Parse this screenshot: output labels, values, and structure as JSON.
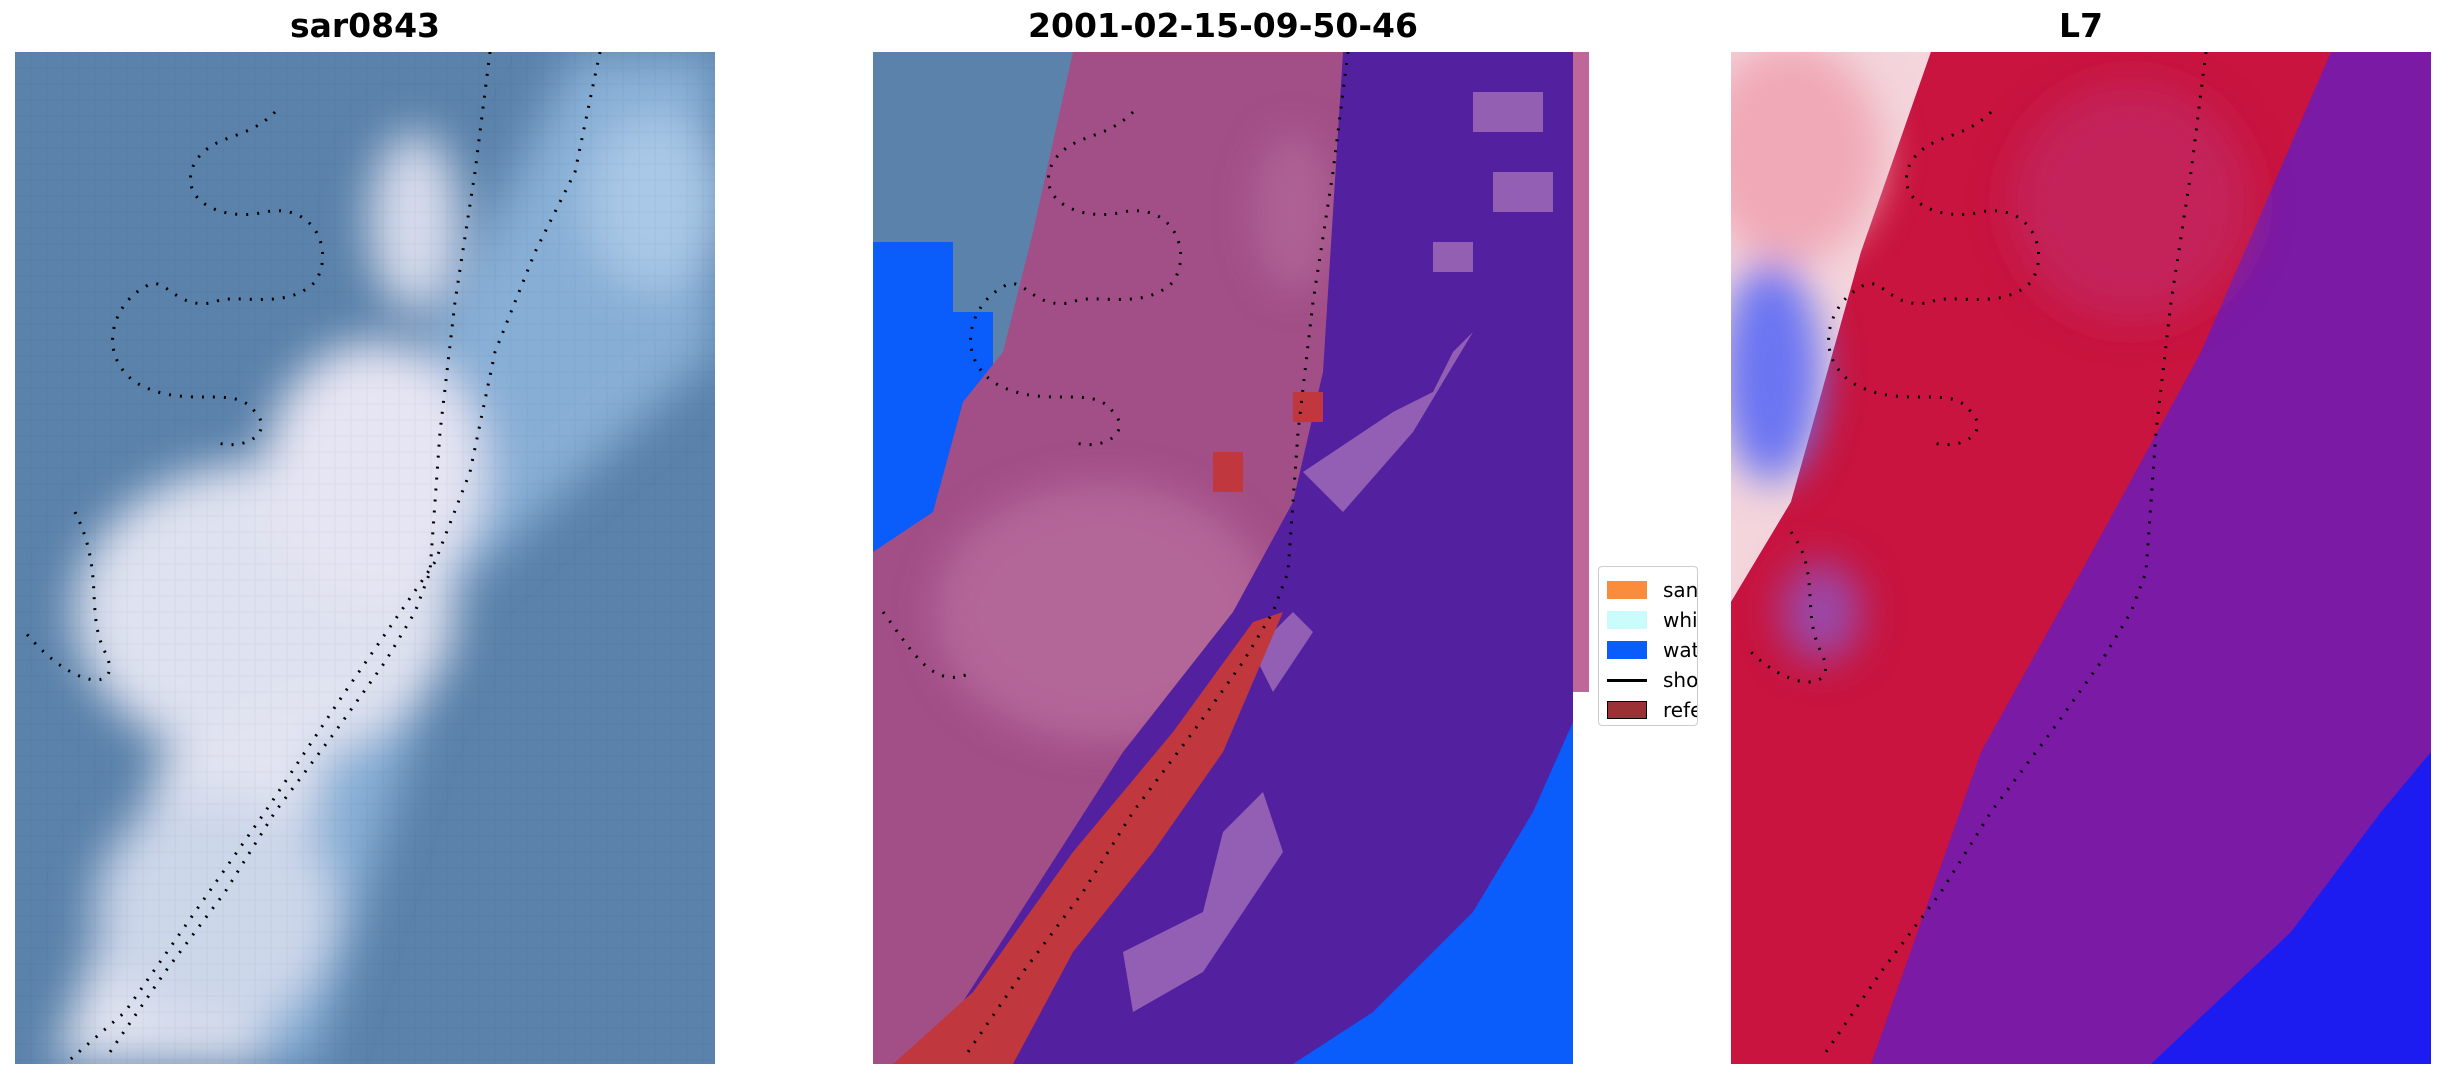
{
  "panels": [
    {
      "title": "sar0843"
    },
    {
      "title": "2001-02-15-09-50-46"
    },
    {
      "title": "L7"
    }
  ],
  "legend": {
    "items": [
      {
        "label": "sand",
        "color": "#fb8c3c",
        "type": "patch"
      },
      {
        "label": "whitewater",
        "color": "#c9fcfa",
        "type": "patch"
      },
      {
        "label": "water",
        "color": "#0a5cfb",
        "type": "patch"
      },
      {
        "label": "shoreline",
        "color": "#000000",
        "type": "line"
      },
      {
        "label": "reference",
        "color": "#9b3035",
        "type": "patch"
      }
    ]
  },
  "colors": {
    "rgb_water": "#5a82ab",
    "rgb_sand": "#e0e4f2",
    "class_sand_blend": "#a24f87",
    "class_water": "#5320a0",
    "class_water_edge": "#0a5cfb",
    "class_reference": "#c0383e",
    "index_positive": "#c8143e",
    "index_negative": "#7a1aa5",
    "index_strong_negative": "#1c1cf0"
  }
}
